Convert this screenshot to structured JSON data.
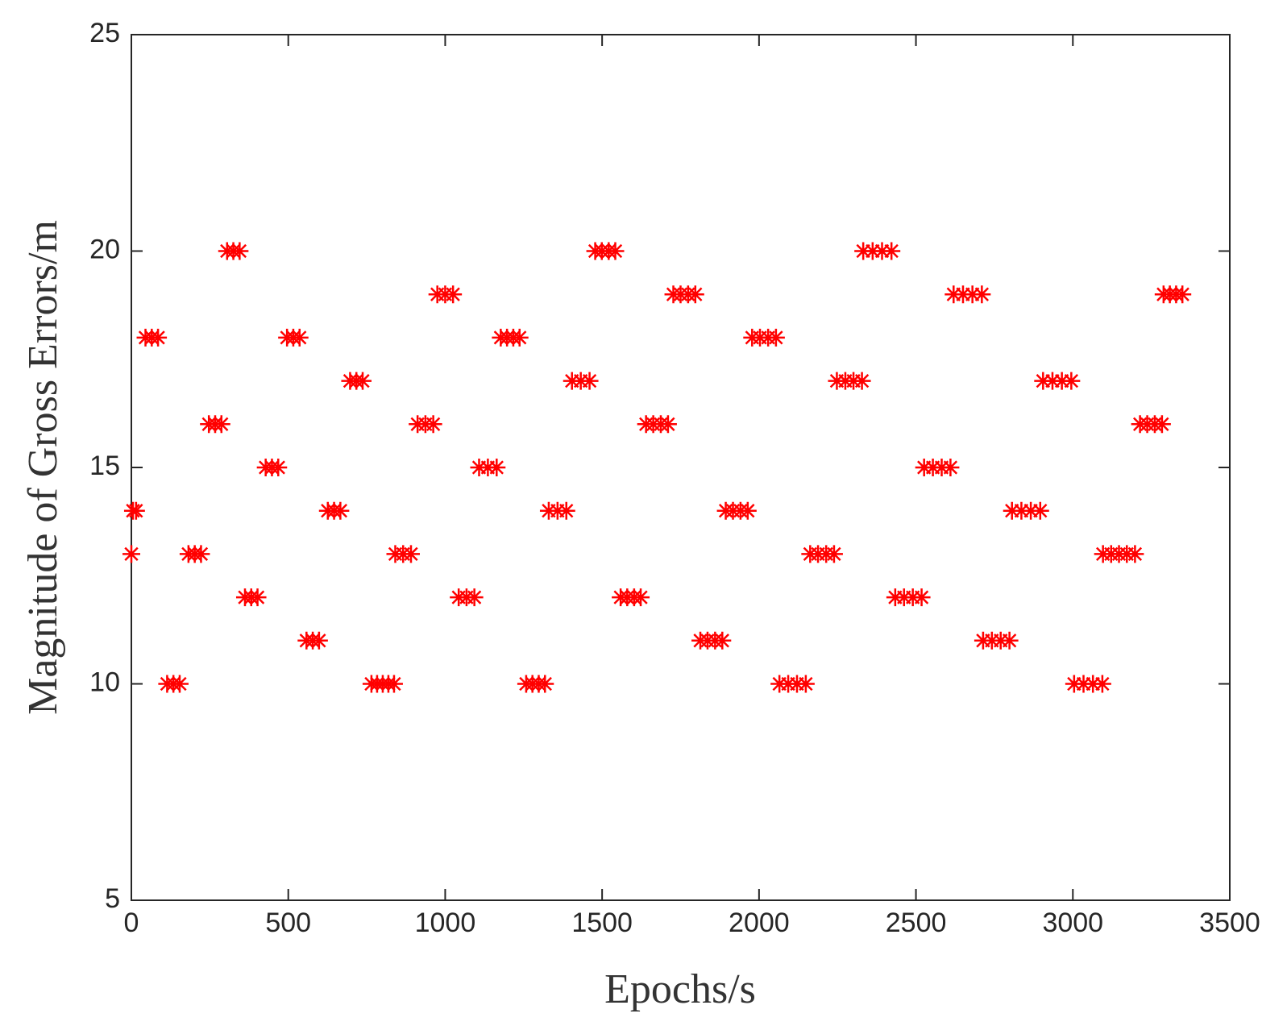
{
  "chart_data": {
    "type": "scatter",
    "xlabel": "Epochs/s",
    "ylabel": "Magnitude of Gross Errors/m",
    "xlim": [
      0,
      3500
    ],
    "ylim": [
      5,
      25
    ],
    "xticks": [
      0,
      500,
      1000,
      1500,
      2000,
      2500,
      3000,
      3500
    ],
    "yticks": [
      5,
      10,
      15,
      20,
      25
    ],
    "marker": "asterisk",
    "color": "#ff0000",
    "x": [
      0,
      5,
      15,
      45,
      65,
      85,
      114,
      134,
      154,
      182,
      202,
      222,
      247,
      267,
      287,
      305,
      325,
      345,
      362,
      382,
      402,
      428,
      448,
      468,
      496,
      516,
      536,
      558,
      578,
      598,
      626,
      646,
      666,
      697,
      717,
      737,
      765,
      783,
      801,
      819,
      837,
      841,
      866,
      891,
      912,
      937,
      962,
      975,
      1000,
      1025,
      1043,
      1068,
      1093,
      1108,
      1136,
      1164,
      1177,
      1197,
      1217,
      1237,
      1258,
      1278,
      1298,
      1318,
      1330,
      1358,
      1386,
      1404,
      1432,
      1460,
      1478,
      1499,
      1521,
      1542,
      1559,
      1580,
      1602,
      1623,
      1640,
      1663,
      1687,
      1710,
      1727,
      1750,
      1774,
      1797,
      1813,
      1836,
      1860,
      1883,
      1894,
      1917,
      1941,
      1964,
      1978,
      2003,
      2029,
      2054,
      2065,
      2093,
      2121,
      2149,
      2163,
      2188,
      2214,
      2239,
      2248,
      2275,
      2301,
      2328,
      2332,
      2362,
      2392,
      2422,
      2434,
      2462,
      2490,
      2518,
      2526,
      2554,
      2582,
      2610,
      2620,
      2650,
      2680,
      2710,
      2714,
      2742,
      2770,
      2798,
      2806,
      2836,
      2866,
      2896,
      2905,
      2935,
      2965,
      2995,
      3004,
      3034,
      3064,
      3094,
      3096,
      3122,
      3147,
      3172,
      3198,
      3214,
      3237,
      3261,
      3284,
      3289,
      3309,
      3329,
      3349
    ],
    "y": [
      13,
      14,
      14,
      18,
      18,
      18,
      10,
      10,
      10,
      13,
      13,
      13,
      16,
      16,
      16,
      20,
      20,
      20,
      12,
      12,
      12,
      15,
      15,
      15,
      18,
      18,
      18,
      11,
      11,
      11,
      14,
      14,
      14,
      17,
      17,
      17,
      10,
      10,
      10,
      10,
      10,
      13,
      13,
      13,
      16,
      16,
      16,
      19,
      19,
      19,
      12,
      12,
      12,
      15,
      15,
      15,
      18,
      18,
      18,
      18,
      10,
      10,
      10,
      10,
      14,
      14,
      14,
      17,
      17,
      17,
      20,
      20,
      20,
      20,
      12,
      12,
      12,
      12,
      16,
      16,
      16,
      16,
      19,
      19,
      19,
      19,
      11,
      11,
      11,
      11,
      14,
      14,
      14,
      14,
      18,
      18,
      18,
      18,
      10,
      10,
      10,
      10,
      13,
      13,
      13,
      13,
      17,
      17,
      17,
      17,
      20,
      20,
      20,
      20,
      12,
      12,
      12,
      12,
      15,
      15,
      15,
      15,
      19,
      19,
      19,
      19,
      11,
      11,
      11,
      11,
      14,
      14,
      14,
      14,
      17,
      17,
      17,
      17,
      10,
      10,
      10,
      10,
      13,
      13,
      13,
      13,
      13,
      16,
      16,
      16,
      16,
      19,
      19,
      19,
      19
    ]
  }
}
